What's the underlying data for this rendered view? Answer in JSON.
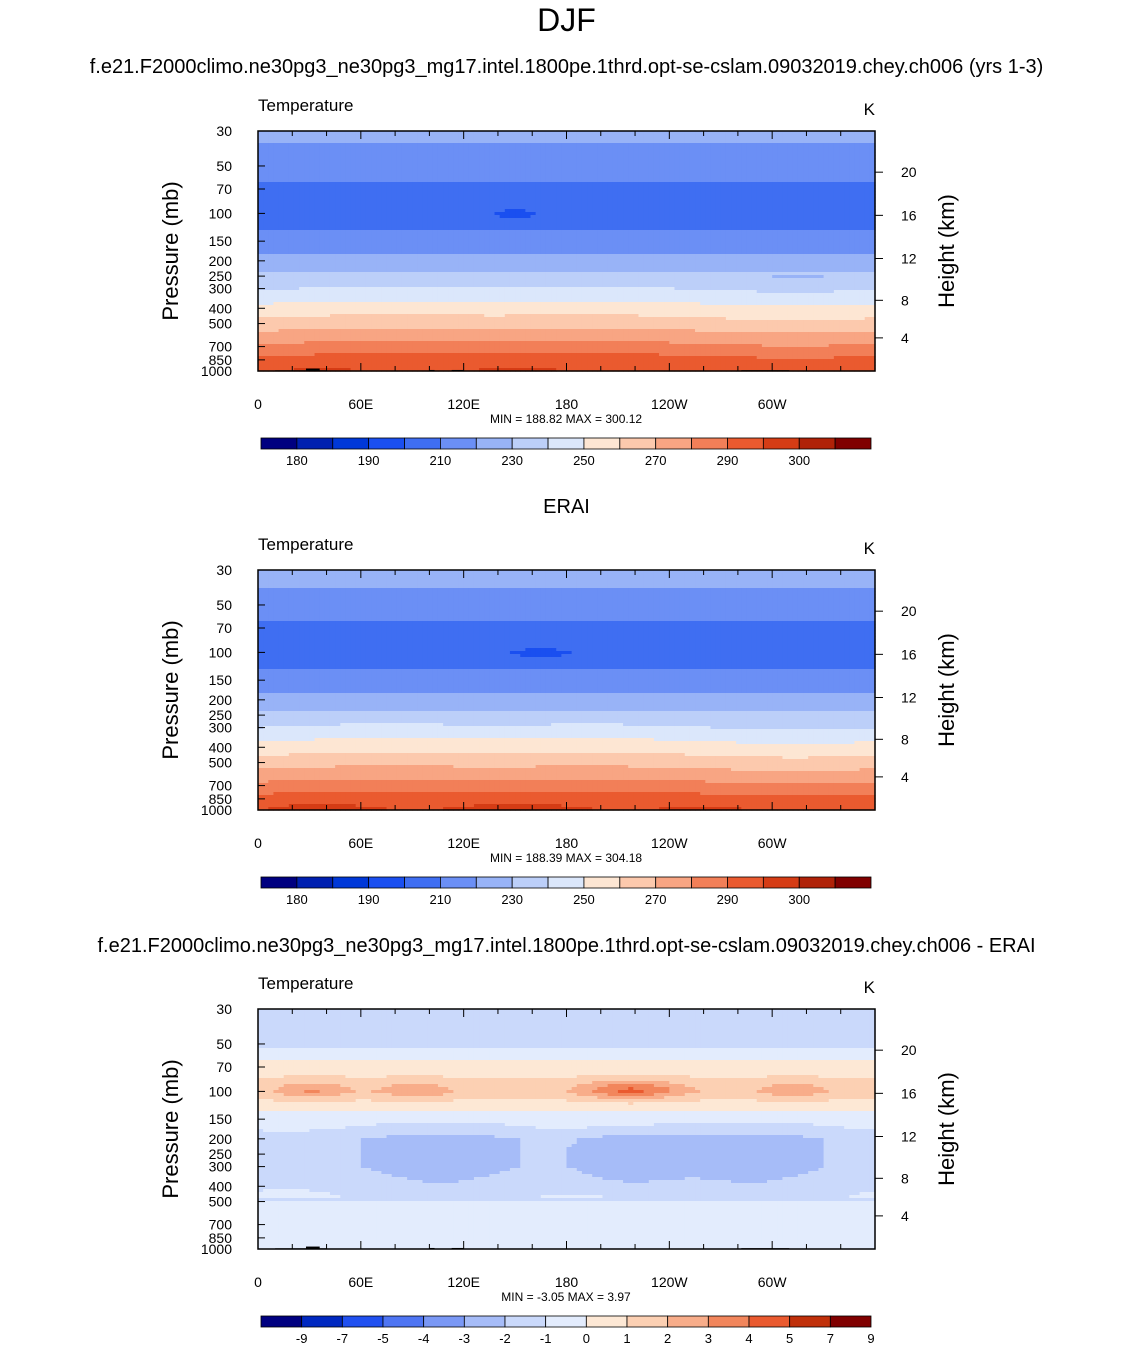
{
  "figure": {
    "title": "DJF",
    "subtitle_model": "f.e21.F2000climo.ne30pg3_ne30pg3_mg17.intel.1800pe.1thrd.opt-se-cslam.09032019.chey.ch006 (yrs 1-3)",
    "subtitle_obs": "ERAI",
    "subtitle_diff": "f.e21.F2000climo.ne30pg3_ne30pg3_mg17.intel.1800pe.1thrd.opt-se-cslam.09032019.chey.ch006 - ERAI"
  },
  "chart_data": [
    {
      "type": "heatmap",
      "name": "model",
      "variable": "Temperature",
      "units": "K",
      "ylabel": "Pressure (mb)",
      "ylabel_right": "Height (km)",
      "x_ticks": [
        "0",
        "60E",
        "120E",
        "180",
        "120W",
        "60W"
      ],
      "y_ticks": [
        "30",
        "50",
        "70",
        "100",
        "150",
        "200",
        "250",
        "300",
        "400",
        "500",
        "700",
        "850",
        "1000"
      ],
      "y_ticks_right": [
        "20",
        "16",
        "12",
        "8",
        "4"
      ],
      "stats": "MIN = 188.82  MAX = 300.12",
      "colorbar_labels": [
        "180",
        "190",
        "210",
        "230",
        "250",
        "270",
        "290",
        "300"
      ],
      "pressure_levels_mb": [
        30,
        50,
        70,
        100,
        150,
        200,
        250,
        300,
        400,
        500,
        700,
        850,
        1000
      ],
      "zonal_temperature_K": [
        212,
        206,
        198,
        195,
        203,
        213,
        222,
        230,
        244,
        255,
        273,
        284,
        289
      ],
      "min": 188.82,
      "max": 300.12
    },
    {
      "type": "heatmap",
      "name": "obs",
      "variable": "Temperature",
      "units": "K",
      "ylabel": "Pressure (mb)",
      "ylabel_right": "Height (km)",
      "x_ticks": [
        "0",
        "60E",
        "120E",
        "180",
        "120W",
        "60W"
      ],
      "y_ticks": [
        "30",
        "50",
        "70",
        "100",
        "150",
        "200",
        "250",
        "300",
        "400",
        "500",
        "700",
        "850",
        "1000"
      ],
      "y_ticks_right": [
        "20",
        "16",
        "12",
        "8",
        "4"
      ],
      "stats": "MIN = 188.39  MAX = 304.18",
      "colorbar_labels": [
        "180",
        "190",
        "210",
        "230",
        "250",
        "270",
        "290",
        "300"
      ],
      "pressure_levels_mb": [
        30,
        50,
        70,
        100,
        150,
        200,
        250,
        300,
        400,
        500,
        700,
        850,
        1000
      ],
      "zonal_temperature_K": [
        214,
        206,
        198,
        195,
        203,
        214,
        223,
        231,
        245,
        256,
        274,
        285,
        291
      ],
      "min": 188.39,
      "max": 304.18
    },
    {
      "type": "heatmap",
      "name": "diff",
      "variable": "Temperature",
      "units": "K",
      "ylabel": "Pressure (mb)",
      "ylabel_right": "Height (km)",
      "x_ticks": [
        "0",
        "60E",
        "120E",
        "180",
        "120W",
        "60W"
      ],
      "y_ticks": [
        "30",
        "50",
        "70",
        "100",
        "150",
        "200",
        "250",
        "300",
        "400",
        "500",
        "700",
        "850",
        "1000"
      ],
      "y_ticks_right": [
        "20",
        "16",
        "12",
        "8",
        "4"
      ],
      "stats": "MIN =  -3.05  MAX =   3.97",
      "colorbar_labels": [
        "-9",
        "-7",
        "-5",
        "-4",
        "-3",
        "-2",
        "-1",
        "0",
        "1",
        "2",
        "3",
        "4",
        "5",
        "7",
        "9"
      ],
      "pressure_levels_mb": [
        30,
        50,
        70,
        100,
        150,
        200,
        250,
        300,
        400,
        500,
        700,
        850,
        1000
      ],
      "zonal_difference_K": [
        -1.5,
        -1.2,
        0.5,
        1.5,
        -0.5,
        -2,
        -2,
        -2,
        -1.5,
        -1,
        -1,
        -0.5,
        -0.5
      ],
      "min": -3.05,
      "max": 3.97
    }
  ],
  "colors": {
    "abs_palette": [
      "#000080",
      "#0020b0",
      "#0038d8",
      "#1a4ff0",
      "#3f6ef2",
      "#6b8ff5",
      "#98b3f7",
      "#bccff9",
      "#dbe7fb",
      "#fde6d3",
      "#fcc9ad",
      "#f8a583",
      "#f27f58",
      "#ea5a2f",
      "#d53c15",
      "#b02208",
      "#800000"
    ],
    "diff_palette": [
      "#000080",
      "#0028c0",
      "#2050f0",
      "#4e75f3",
      "#7a98f5",
      "#a6bcf8",
      "#cad9fb",
      "#e3ecfd",
      "#fde8d5",
      "#fcd0b3",
      "#f8ad8a",
      "#f2865c",
      "#ea5a2f",
      "#c0300a",
      "#800000"
    ],
    "topography": "#000000"
  }
}
